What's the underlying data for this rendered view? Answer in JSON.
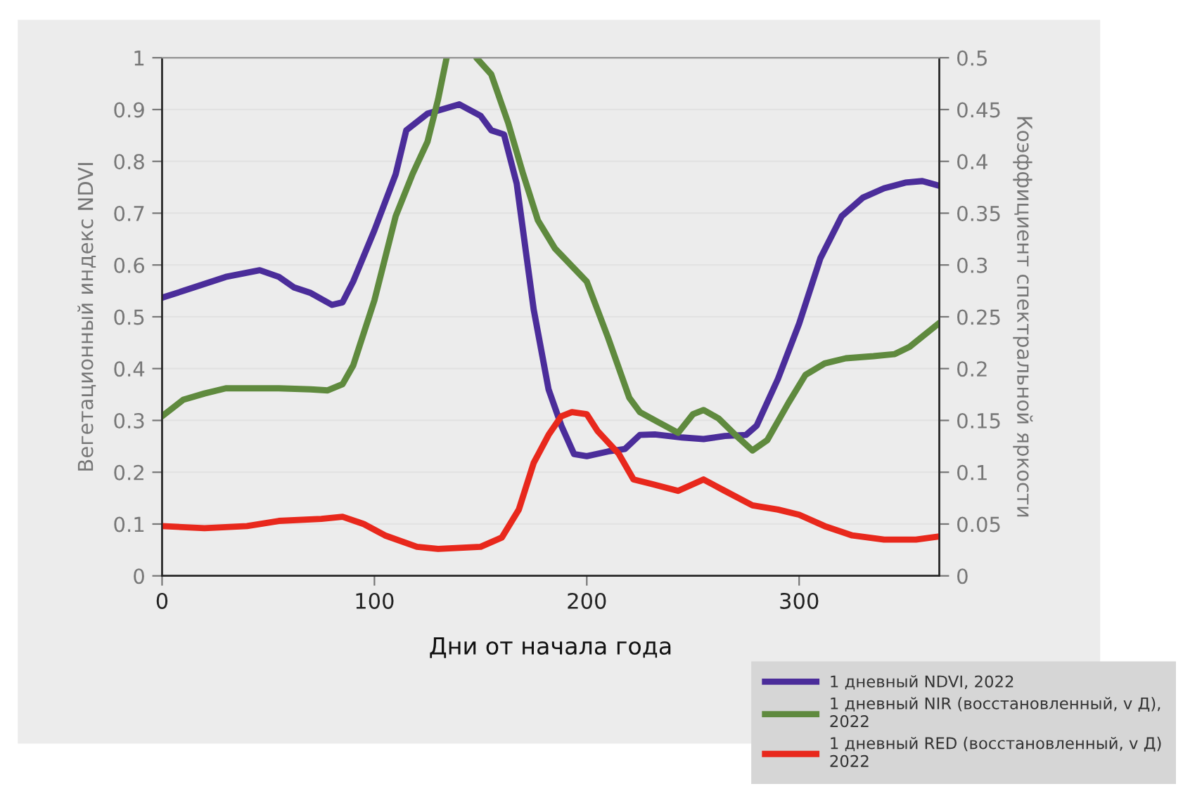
{
  "chart_data": {
    "type": "line",
    "xlabel": "Дни от начала года",
    "ylabel": "Вегетационный индекс NDVI",
    "y2label": "Коэффициент спектральной яркости",
    "xlim": [
      0,
      366
    ],
    "xticks": [
      0,
      100,
      200,
      300
    ],
    "ylim": [
      0,
      1
    ],
    "yticks": [
      0,
      0.1,
      0.2,
      0.3,
      0.4,
      0.5,
      0.6,
      0.7,
      0.8,
      0.9,
      1
    ],
    "y2lim": [
      0,
      0.5
    ],
    "y2ticks": [
      0,
      0.05,
      0.1,
      0.15,
      0.2,
      0.25,
      0.3,
      0.35,
      0.4,
      0.45,
      0.5
    ],
    "grid": "y",
    "legend": "bottom right",
    "line_style": "solid",
    "series": [
      {
        "name": "1 дневный NDVI, 2022",
        "color": "#4b2d9a",
        "x": [
          0,
          10,
          30,
          46,
          55,
          62,
          70,
          80,
          85,
          90,
          100,
          110,
          115,
          125,
          140,
          150,
          155,
          161,
          167,
          175,
          182,
          188,
          194,
          200,
          210,
          218,
          225,
          232,
          245,
          255,
          265,
          275,
          280,
          290,
          300,
          310,
          320,
          330,
          340,
          350,
          358,
          366
        ],
        "values": [
          0.537,
          0.55,
          0.577,
          0.59,
          0.577,
          0.557,
          0.546,
          0.523,
          0.528,
          0.568,
          0.667,
          0.775,
          0.86,
          0.892,
          0.91,
          0.888,
          0.86,
          0.852,
          0.757,
          0.514,
          0.36,
          0.29,
          0.235,
          0.231,
          0.24,
          0.245,
          0.272,
          0.273,
          0.267,
          0.264,
          0.27,
          0.272,
          0.29,
          0.38,
          0.487,
          0.613,
          0.694,
          0.73,
          0.748,
          0.759,
          0.762,
          0.753
        ]
      },
      {
        "name": "1 дневный NIR (восстановленный, v Д),\n2022",
        "color": "#5f8a3e",
        "axis": "y2",
        "x": [
          0,
          10,
          20,
          30,
          45,
          55,
          70,
          78,
          85,
          90,
          100,
          110,
          118,
          125,
          130,
          134,
          141,
          148,
          155,
          163,
          170,
          177,
          185,
          200,
          210,
          220,
          225,
          233,
          243,
          250,
          255,
          262,
          270,
          278,
          285,
          295,
          303,
          312,
          322,
          335,
          345,
          352,
          366
        ],
        "values": [
          0.154,
          0.17,
          0.176,
          0.181,
          0.181,
          0.181,
          0.18,
          0.179,
          0.185,
          0.203,
          0.266,
          0.347,
          0.388,
          0.419,
          0.46,
          0.5,
          null,
          0.5,
          0.484,
          0.437,
          0.388,
          0.343,
          0.316,
          0.284,
          0.23,
          0.172,
          0.158,
          0.149,
          0.138,
          0.156,
          0.16,
          0.152,
          0.136,
          0.121,
          0.131,
          0.167,
          0.194,
          0.205,
          0.21,
          0.212,
          0.214,
          0.221,
          0.244
        ]
      },
      {
        "name": "1 дневный RED (восстановленный, v Д)\n2022",
        "color": "#e8281c",
        "axis": "y2",
        "x": [
          0,
          20,
          40,
          55,
          75,
          85,
          95,
          105,
          120,
          130,
          150,
          160,
          168,
          175,
          182,
          188,
          193,
          200,
          205,
          215,
          222,
          230,
          243,
          255,
          265,
          278,
          290,
          300,
          312,
          325,
          340,
          355,
          366
        ],
        "values": [
          0.048,
          0.046,
          0.048,
          0.053,
          0.055,
          0.057,
          0.05,
          0.039,
          0.028,
          0.026,
          0.028,
          0.037,
          0.064,
          0.109,
          0.136,
          0.154,
          0.158,
          0.156,
          0.14,
          0.118,
          0.093,
          0.089,
          0.082,
          0.093,
          0.082,
          0.068,
          0.064,
          0.059,
          0.048,
          0.039,
          0.035,
          0.035,
          0.038
        ]
      }
    ]
  }
}
